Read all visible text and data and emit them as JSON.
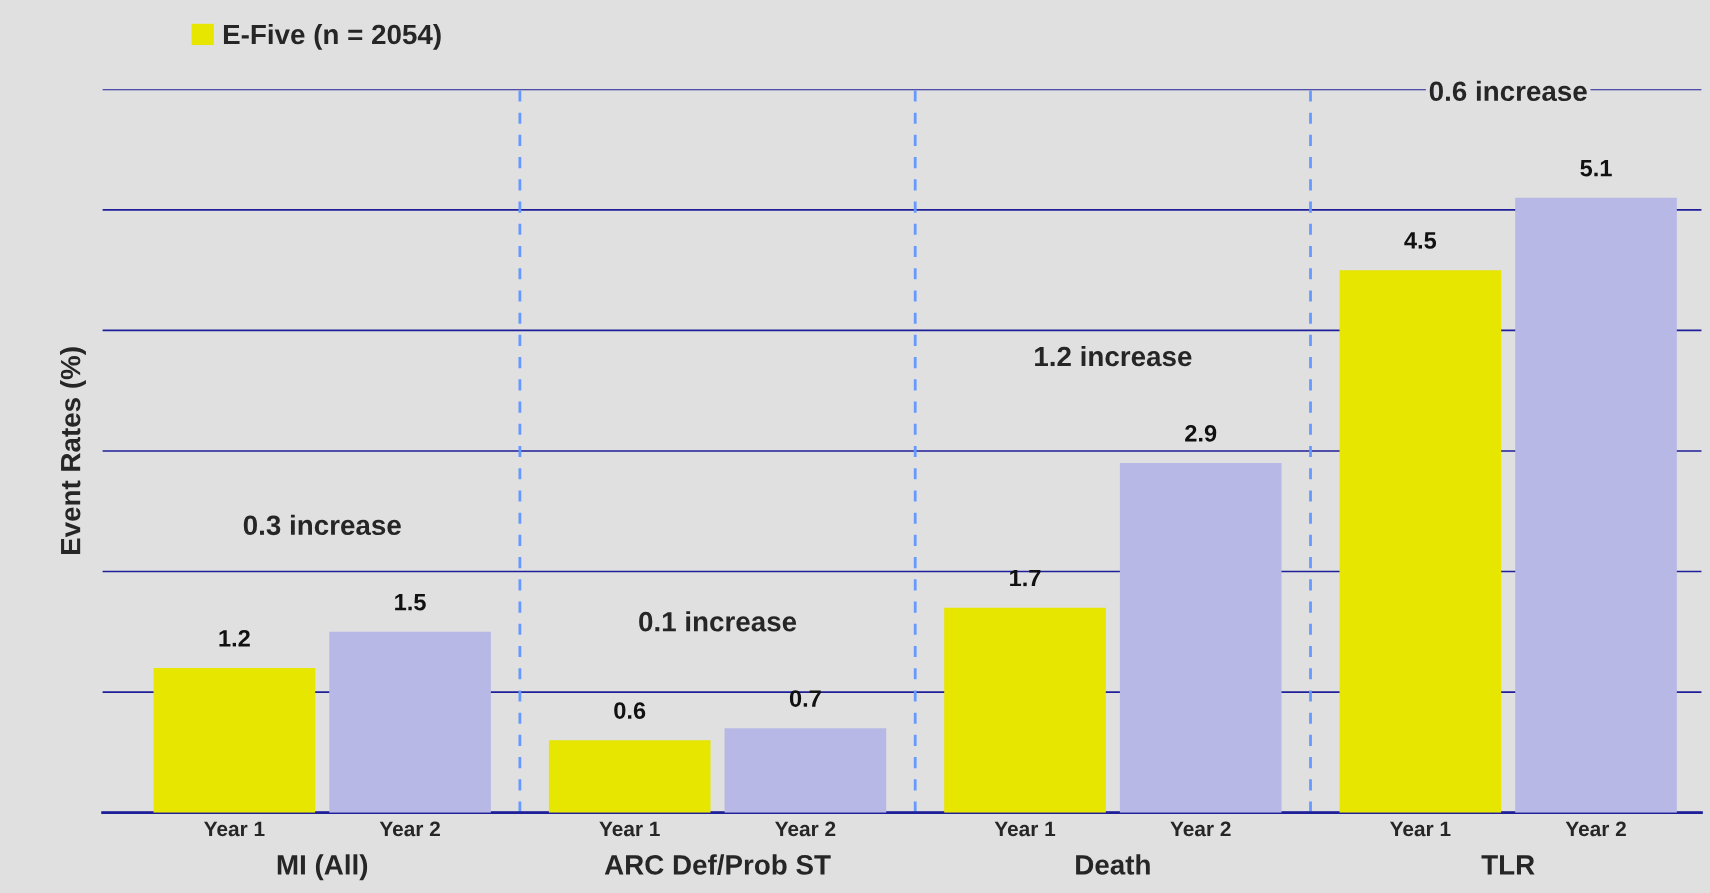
{
  "chart_data": {
    "type": "bar",
    "ylabel": "Event Rates (%)",
    "categories": [
      "Year 1",
      "Year 2",
      "Year 1",
      "Year 2",
      "Year 1",
      "Year 2",
      "Year 1",
      "Year 2"
    ],
    "series": [
      {
        "name": "E-Five (n = 2054)",
        "colors": [
          "#e6e600",
          "#b8b8e6",
          "#e6e600",
          "#b8b8e6",
          "#e6e600",
          "#b8b8e6",
          "#e6e600",
          "#b8b8e6"
        ],
        "values": [
          1.2,
          1.5,
          0.6,
          0.7,
          1.7,
          2.9,
          4.5,
          5.1
        ]
      }
    ],
    "ylim": [
      0,
      6
    ],
    "yticks": [
      {
        "value": 0,
        "label": null
      },
      {
        "value": 1,
        "label": null
      },
      {
        "value": 2,
        "label": null
      },
      {
        "value": 3,
        "label": null
      },
      {
        "value": 4,
        "label": null
      },
      {
        "value": 5,
        "label": null
      },
      {
        "value": 6,
        "label": null
      }
    ],
    "tick_labels": "x",
    "grid": "y",
    "legend": "top left",
    "data_labels": true,
    "annotations": [
      "0.3 increase",
      "0.1 increase",
      "1.2 increase",
      "0.6 increase",
      "MI (All)",
      "ARC Def/Prob ST",
      "Death",
      "TLR"
    ]
  }
}
